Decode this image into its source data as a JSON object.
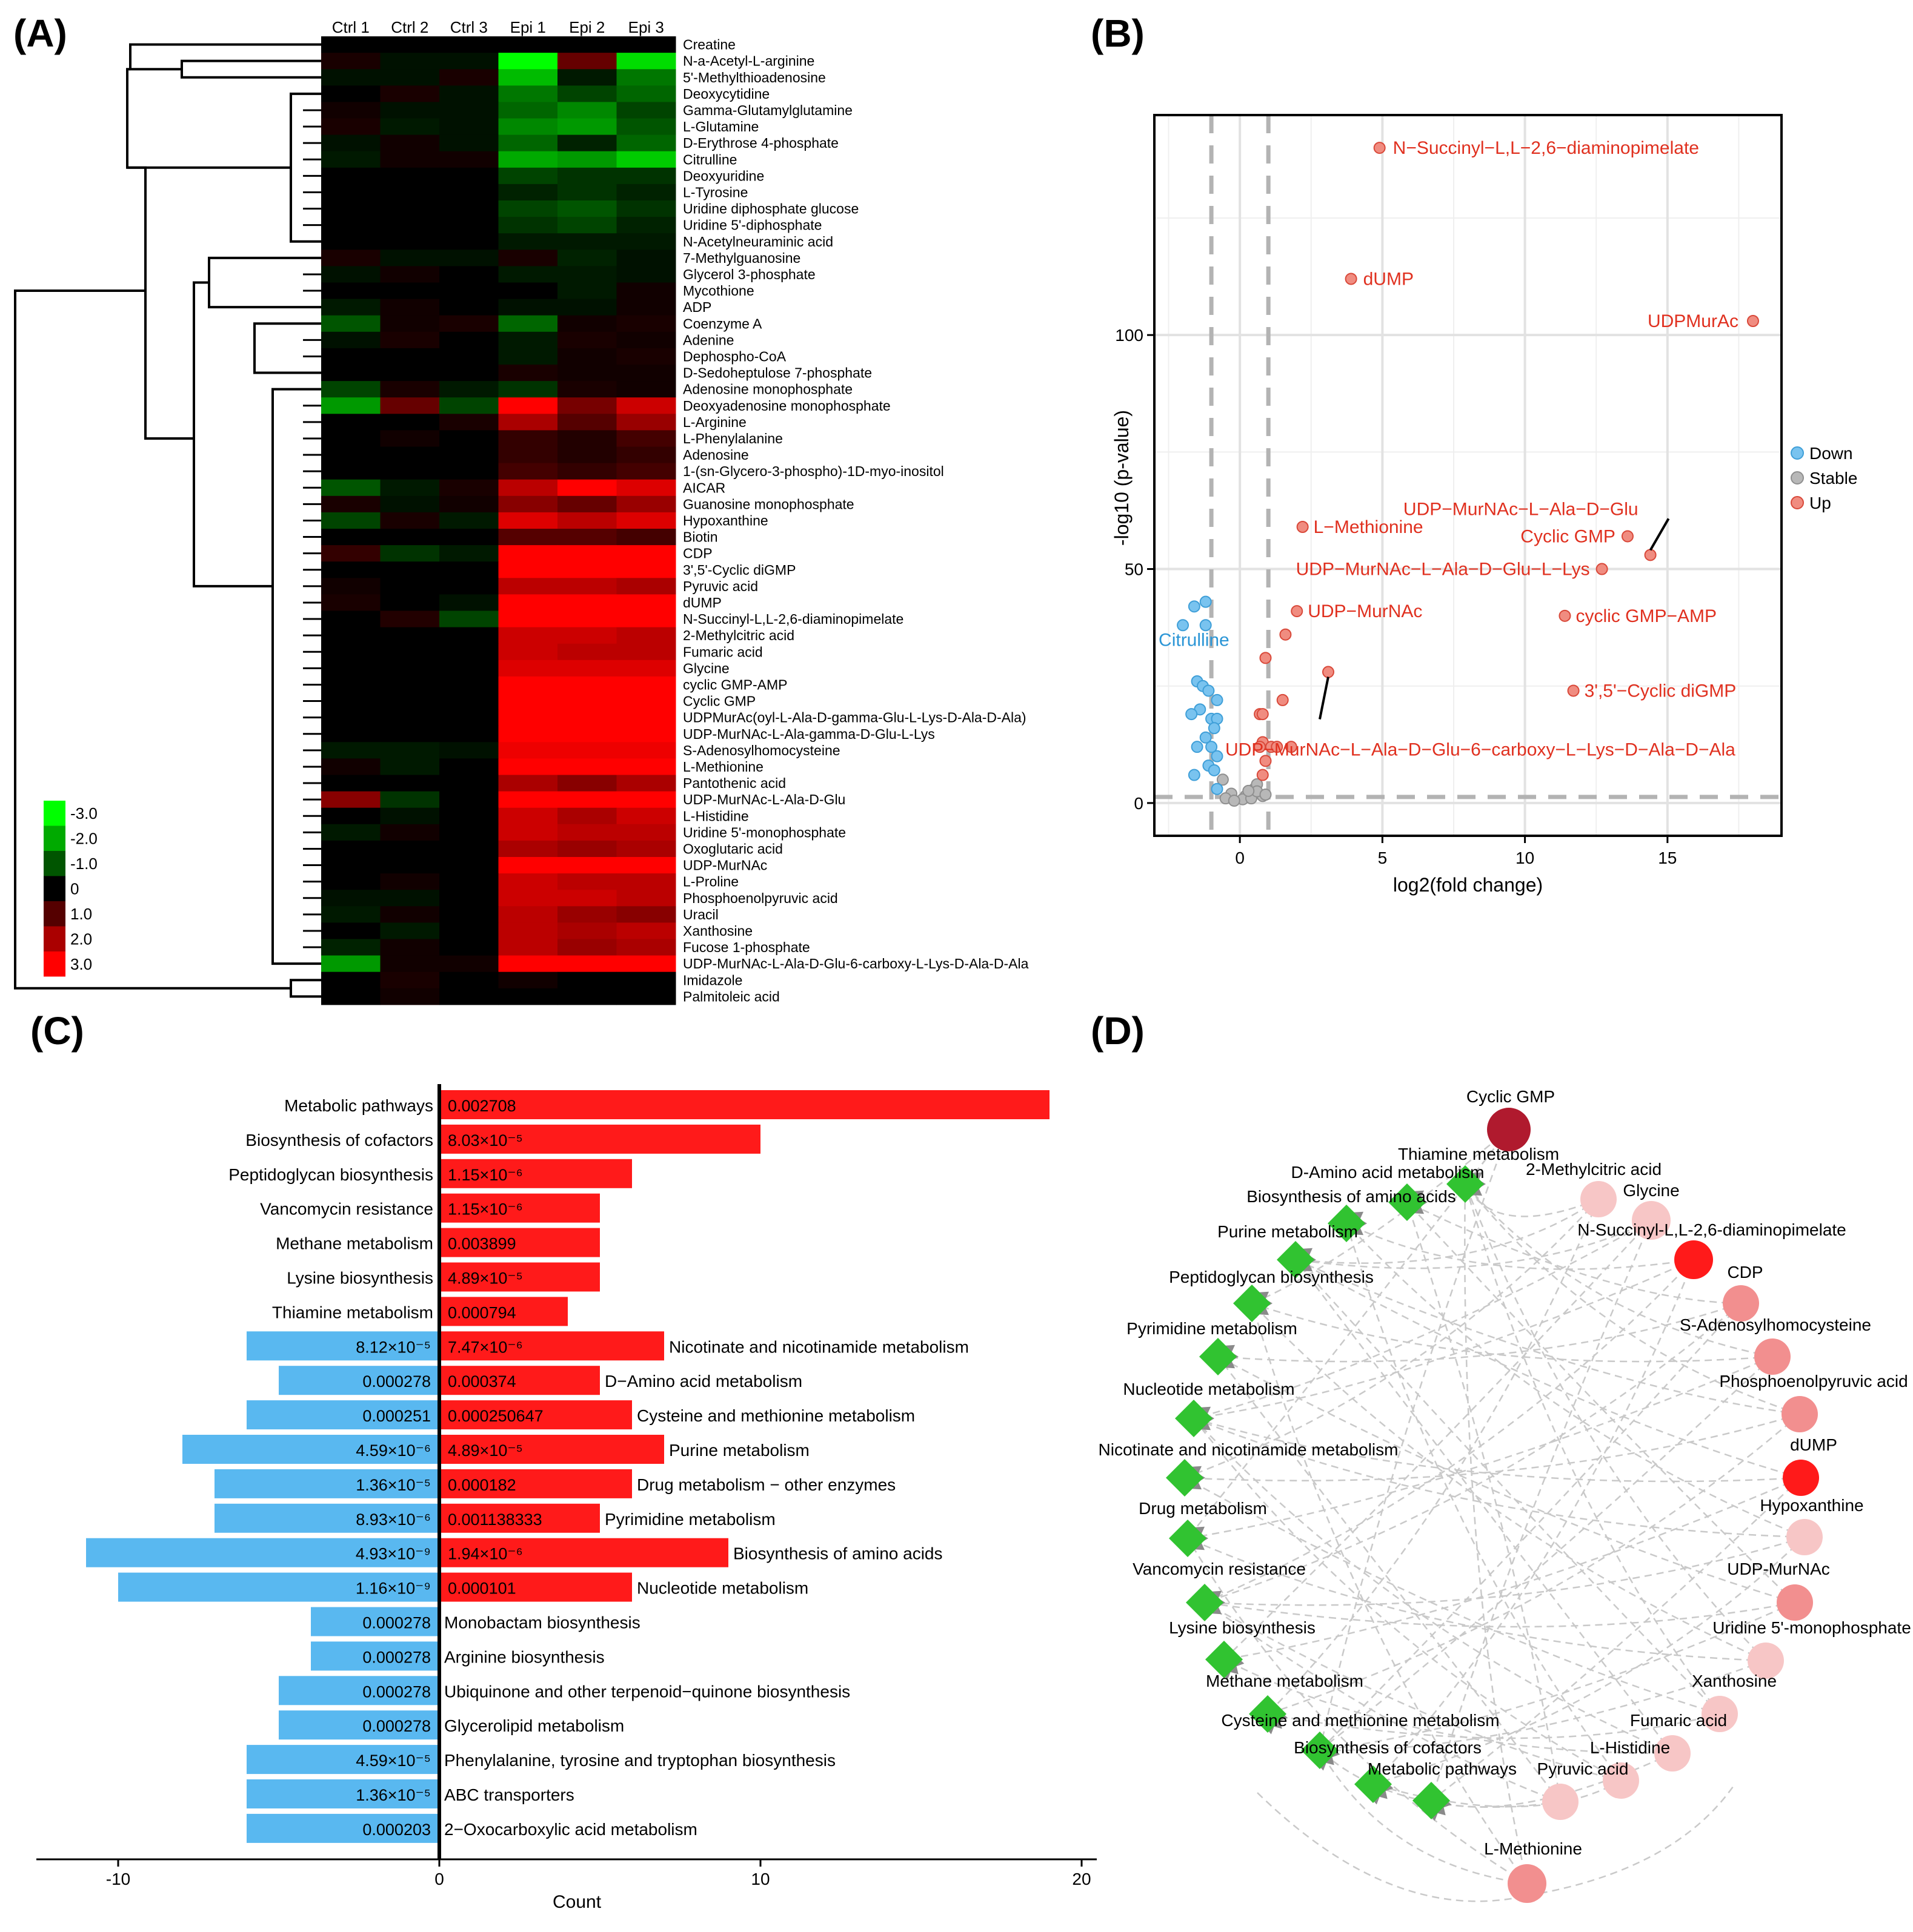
{
  "panels": {
    "a": "(A)",
    "b": "(B)",
    "c": "(C)",
    "d": "(D)"
  },
  "colors": {
    "up": "#ff1a1a",
    "down": "#59b8f0",
    "stable": "#b3b3b3",
    "node": "#31c331",
    "dark_red": "#b01a2e",
    "pink": "#f7b2b2"
  },
  "heatmap": {
    "columns": [
      "Ctrl 1",
      "Ctrl 2",
      "Ctrl 3",
      "Epi 1",
      "Epi 2",
      "Epi 3"
    ],
    "rows": [
      "Creatine",
      "N-a-Acetyl-L-arginine",
      "5'-Methylthioadenosine",
      "Deoxycytidine",
      "Gamma-Glutamylglutamine",
      "L-Glutamine",
      "D-Erythrose 4-phosphate",
      "Citrulline",
      "Deoxyuridine",
      "L-Tyrosine",
      "Uridine diphosphate glucose",
      "Uridine 5'-diphosphate",
      "N-Acetylneuraminic acid",
      "7-Methylguanosine",
      "Glycerol 3-phosphate",
      "Mycothione",
      "ADP",
      "Coenzyme A",
      "Adenine",
      "Dephospho-CoA",
      "D-Sedoheptulose 7-phosphate",
      "Adenosine monophosphate",
      "Deoxyadenosine monophosphate",
      "L-Arginine",
      "L-Phenylalanine",
      "Adenosine",
      "1-(sn-Glycero-3-phospho)-1D-myo-inositol",
      "AICAR",
      "Guanosine monophosphate",
      "Hypoxanthine",
      "Biotin",
      "CDP",
      "3',5'-Cyclic diGMP",
      "Pyruvic acid",
      "dUMP",
      "N-Succinyl-L,L-2,6-diaminopimelate",
      "2-Methylcitric acid",
      "Fumaric acid",
      "Glycine",
      "cyclic GMP-AMP",
      "Cyclic GMP",
      "UDPMurAc(oyl-L-Ala-D-gamma-Glu-L-Lys-D-Ala-D-Ala)",
      "UDP-MurNAc-L-Ala-gamma-D-Glu-L-Lys",
      "S-Adenosylhomocysteine",
      "L-Methionine",
      "Pantothenic acid",
      "UDP-MurNAc-L-Ala-D-Glu",
      "L-Histidine",
      "Uridine 5'-monophosphate",
      "Oxoglutaric acid",
      "UDP-MurNAc",
      "L-Proline",
      "Phosphoenolpyruvic acid",
      "Uracil",
      "Xanthosine",
      "Fucose 1-phosphate",
      "UDP-MurNAc-L-Ala-D-Glu-6-carboxy-L-Lys-D-Ala-D-Ala",
      "Imidazole",
      "Palmitoleic acid"
    ],
    "legend": [
      "-3.0",
      "-2.0",
      "-1.0",
      "0",
      "1.0",
      "2.0",
      "3.0"
    ],
    "values": [
      [
        0,
        0,
        0,
        0,
        0,
        0
      ],
      [
        0.3,
        -0.2,
        -0.2,
        -3,
        1.2,
        -2.6
      ],
      [
        -0.2,
        -0.2,
        0.3,
        -2.2,
        -0.3,
        -1.4
      ],
      [
        0,
        0.3,
        -0.2,
        -1.4,
        -0.8,
        -1.2
      ],
      [
        0.2,
        -0.2,
        -0.2,
        -1.2,
        -1.6,
        -0.8
      ],
      [
        0.3,
        -0.3,
        -0.2,
        -1.6,
        -1.8,
        -1.0
      ],
      [
        -0.2,
        0.2,
        -0.2,
        -1.2,
        -0.4,
        -1.2
      ],
      [
        -0.3,
        0.2,
        0.2,
        -2.0,
        -1.8,
        -2.4
      ],
      [
        0,
        0,
        0,
        -0.8,
        -0.6,
        -0.6
      ],
      [
        0,
        0,
        0,
        -0.4,
        -0.6,
        -0.4
      ],
      [
        0,
        0,
        0,
        -0.8,
        -1.0,
        -0.6
      ],
      [
        0,
        0,
        0,
        -0.6,
        -0.8,
        -0.4
      ],
      [
        0,
        0,
        0,
        -0.3,
        -0.3,
        -0.3
      ],
      [
        0.3,
        -0.2,
        -0.2,
        0.3,
        -0.4,
        -0.2
      ],
      [
        -0.2,
        0.2,
        0,
        -0.3,
        -0.3,
        -0.2
      ],
      [
        0,
        0,
        0,
        0,
        -0.3,
        0.2
      ],
      [
        -0.3,
        0.2,
        0,
        -0.2,
        -0.2,
        0.2
      ],
      [
        -1.0,
        0.2,
        0.3,
        -1.2,
        0.2,
        0.3
      ],
      [
        -0.2,
        0.3,
        0,
        -0.3,
        0.3,
        0.2
      ],
      [
        0,
        0,
        0,
        -0.3,
        0.2,
        0.3
      ],
      [
        0,
        0,
        0,
        0.3,
        0.2,
        0.2
      ],
      [
        -0.8,
        0.3,
        -0.3,
        -0.6,
        0.3,
        0.2
      ],
      [
        -1.8,
        1.2,
        -0.8,
        3,
        1.4,
        2.4
      ],
      [
        0,
        0,
        0.3,
        2.0,
        1.0,
        1.8
      ],
      [
        0,
        0.2,
        0,
        0.6,
        0.4,
        0.8
      ],
      [
        0,
        0,
        0,
        0.6,
        0.4,
        0.6
      ],
      [
        0,
        0,
        0,
        0.8,
        0.6,
        0.8
      ],
      [
        -1.0,
        -0.3,
        0.3,
        2.2,
        3,
        2.6
      ],
      [
        0.3,
        -0.2,
        0.2,
        1.6,
        1.2,
        1.8
      ],
      [
        -0.8,
        0.3,
        -0.3,
        2.6,
        2.2,
        2.6
      ],
      [
        0,
        0,
        0,
        1.0,
        1.0,
        0.8
      ],
      [
        0.6,
        -0.6,
        -0.3,
        3,
        3,
        3
      ],
      [
        0,
        0,
        0,
        3,
        3,
        3
      ],
      [
        0.2,
        0,
        0,
        2.2,
        2.2,
        2.0
      ],
      [
        0.3,
        0,
        -0.2,
        3,
        3,
        3
      ],
      [
        0,
        0.4,
        -0.8,
        3,
        3,
        3
      ],
      [
        0,
        0,
        0,
        2.4,
        2.4,
        2.2
      ],
      [
        0,
        0,
        0,
        2.4,
        2.2,
        2.2
      ],
      [
        0,
        0,
        0,
        2.6,
        2.6,
        2.6
      ],
      [
        0,
        0,
        0,
        3,
        3,
        3
      ],
      [
        0,
        0,
        0,
        3,
        3,
        3
      ],
      [
        0,
        0,
        0,
        3,
        3,
        3
      ],
      [
        0,
        0,
        0,
        3,
        3,
        3
      ],
      [
        -0.3,
        -0.3,
        -0.2,
        2.8,
        2.8,
        2.8
      ],
      [
        0.2,
        -0.3,
        0,
        3,
        3,
        3
      ],
      [
        0,
        0,
        0,
        2.0,
        1.6,
        2.0
      ],
      [
        1.6,
        -0.6,
        0,
        3,
        3,
        3
      ],
      [
        0,
        -0.2,
        0,
        2.4,
        2.0,
        2.4
      ],
      [
        -0.3,
        0.2,
        0,
        2.4,
        2.2,
        2.2
      ],
      [
        0,
        0,
        0,
        2.0,
        1.8,
        2.0
      ],
      [
        0,
        0,
        0,
        3,
        3,
        3
      ],
      [
        0,
        0.2,
        0,
        2.4,
        2.2,
        2.2
      ],
      [
        -0.2,
        -0.2,
        0,
        2.4,
        2.4,
        2.2
      ],
      [
        -0.3,
        0.2,
        0,
        2.2,
        1.8,
        1.6
      ],
      [
        0,
        -0.3,
        0,
        2.2,
        2.0,
        2.2
      ],
      [
        -0.4,
        0.2,
        0,
        2.2,
        1.8,
        2.0
      ],
      [
        -1.8,
        0.2,
        0.2,
        3,
        3,
        3
      ],
      [
        0,
        0.3,
        0,
        0.2,
        0,
        0
      ],
      [
        0,
        0.2,
        0,
        0,
        0,
        0
      ]
    ]
  },
  "volcano": {
    "chart_data": {
      "type": "scatter",
      "xlabel": "log2(fold change)",
      "ylabel": "-log10 (p-value)",
      "xlim": [
        -3,
        19
      ],
      "ylim": [
        -7,
        147
      ],
      "xticks": [
        0,
        5,
        10,
        15
      ],
      "yticks": [
        0,
        50,
        100
      ],
      "thresholds": {
        "x": [
          -1,
          1
        ],
        "y": 1.3
      },
      "legend": [
        "Down",
        "Stable",
        "Up"
      ],
      "labels": [
        {
          "text": "N−Succinyl−L,L−2,6−diaminopimelate",
          "x": 4.9,
          "y": 140,
          "group": "up"
        },
        {
          "text": "dUMP",
          "x": 3.9,
          "y": 112,
          "group": "up"
        },
        {
          "text": "UDPMurAc",
          "x": 18.0,
          "y": 103,
          "group": "up"
        },
        {
          "text": "UDP−MurNAc−L−Ala−D−Glu",
          "x": 14.4,
          "y": 53,
          "group": "up"
        },
        {
          "text": "Cyclic GMP",
          "x": 13.6,
          "y": 57,
          "group": "up"
        },
        {
          "text": "L−Methionine",
          "x": 2.2,
          "y": 59,
          "group": "up"
        },
        {
          "text": "UDP−MurNAc−L−Ala−D−Glu−L−Lys",
          "x": 12.7,
          "y": 50,
          "group": "up"
        },
        {
          "text": "UDP−MurNAc",
          "x": 2.0,
          "y": 41,
          "group": "up"
        },
        {
          "text": "cyclic GMP−AMP",
          "x": 11.4,
          "y": 40,
          "group": "up"
        },
        {
          "text": "3',5'−Cyclic diGMP",
          "x": 11.7,
          "y": 24,
          "group": "up"
        },
        {
          "text": "UDP−MurNAc−L−Ala−D−Glu−6−carboxy−L−Lys−D−Ala−D−Ala",
          "x": 3.1,
          "y": 28,
          "group": "up"
        },
        {
          "text": "Citrulline",
          "x": -2.0,
          "y": 38,
          "group": "down"
        }
      ],
      "points": {
        "up": [
          [
            4.9,
            140
          ],
          [
            3.9,
            112
          ],
          [
            18.0,
            103
          ],
          [
            14.4,
            53
          ],
          [
            13.6,
            57
          ],
          [
            2.2,
            59
          ],
          [
            12.7,
            50
          ],
          [
            2.0,
            41
          ],
          [
            11.4,
            40
          ],
          [
            11.7,
            24
          ],
          [
            3.1,
            28
          ],
          [
            1.6,
            36
          ],
          [
            0.9,
            31
          ],
          [
            1.5,
            22
          ],
          [
            0.7,
            19
          ],
          [
            0.8,
            19
          ],
          [
            0.8,
            13
          ],
          [
            0.7,
            12
          ],
          [
            1.1,
            12
          ],
          [
            1.3,
            12
          ],
          [
            1.8,
            12
          ],
          [
            0.9,
            9
          ],
          [
            0.8,
            6
          ]
        ],
        "down": [
          [
            -2.0,
            38
          ],
          [
            -1.6,
            42
          ],
          [
            -1.2,
            43
          ],
          [
            -1.2,
            38
          ],
          [
            -1.5,
            26
          ],
          [
            -1.3,
            25
          ],
          [
            -1.1,
            24
          ],
          [
            -0.8,
            22
          ],
          [
            -1.4,
            20
          ],
          [
            -1.7,
            19
          ],
          [
            -1.0,
            18
          ],
          [
            -0.8,
            18
          ],
          [
            -0.9,
            16
          ],
          [
            -1.2,
            14
          ],
          [
            -1.0,
            12
          ],
          [
            -1.5,
            12
          ],
          [
            -0.8,
            10
          ],
          [
            -1.1,
            8
          ],
          [
            -0.9,
            7
          ],
          [
            -1.6,
            6
          ],
          [
            -0.8,
            3
          ]
        ],
        "stable": [
          [
            -0.6,
            5
          ],
          [
            -0.3,
            2
          ],
          [
            0.2,
            1.5
          ],
          [
            0.5,
            3
          ],
          [
            0.6,
            4
          ],
          [
            -0.5,
            1
          ],
          [
            0.1,
            0.8
          ],
          [
            0.4,
            1
          ],
          [
            0.8,
            1.5
          ],
          [
            -0.2,
            0.5
          ],
          [
            0.6,
            2.5
          ],
          [
            0.9,
            1.8
          ],
          [
            0.3,
            2.6
          ]
        ]
      }
    }
  },
  "barchart": {
    "chart_data": {
      "type": "bar",
      "orientation": "horizontal",
      "xlabel": "Count",
      "xlim": [
        -12.5,
        20.5
      ],
      "xticks": [
        -10,
        0,
        10,
        20
      ],
      "series": [
        {
          "name": "",
          "color": "#59b8f0"
        },
        {
          "name": "",
          "color": "#ff1a1a"
        }
      ],
      "rows": [
        {
          "category": "Metabolic pathways",
          "down": null,
          "down_label": "",
          "up": 19,
          "up_label": "0.002708",
          "label_side": "left"
        },
        {
          "category": "Biosynthesis of cofactors",
          "down": null,
          "down_label": "",
          "up": 10,
          "up_label": "8.03×10⁻⁵",
          "label_side": "left"
        },
        {
          "category": "Peptidoglycan biosynthesis",
          "down": null,
          "down_label": "",
          "up": 6,
          "up_label": "1.15×10⁻⁶",
          "label_side": "left"
        },
        {
          "category": "Vancomycin resistance",
          "down": null,
          "down_label": "",
          "up": 5,
          "up_label": "1.15×10⁻⁶",
          "label_side": "left"
        },
        {
          "category": "Methane metabolism",
          "down": null,
          "down_label": "",
          "up": 5,
          "up_label": "0.003899",
          "label_side": "left"
        },
        {
          "category": "Lysine biosynthesis",
          "down": null,
          "down_label": "",
          "up": 5,
          "up_label": "4.89×10⁻⁵",
          "label_side": "left"
        },
        {
          "category": "Thiamine metabolism",
          "down": null,
          "down_label": "",
          "up": 4,
          "up_label": "0.000794",
          "label_side": "left"
        },
        {
          "category": "Nicotinate and nicotinamide metabolism",
          "down": -6,
          "down_label": "8.12×10⁻⁵",
          "up": 7,
          "up_label": "7.47×10⁻⁶",
          "label_side": "right"
        },
        {
          "category": "D−Amino acid metabolism",
          "down": -5,
          "down_label": "0.000278",
          "up": 5,
          "up_label": "0.000374",
          "label_side": "right"
        },
        {
          "category": "Cysteine and methionine metabolism",
          "down": -6,
          "down_label": "0.000251",
          "up": 6,
          "up_label": "0.000250647",
          "label_side": "right"
        },
        {
          "category": "Purine metabolism",
          "down": -8,
          "down_label": "4.59×10⁻⁶",
          "up": 7,
          "up_label": "4.89×10⁻⁵",
          "label_side": "right"
        },
        {
          "category": "Drug metabolism − other enzymes",
          "down": -7,
          "down_label": "1.36×10⁻⁵",
          "up": 6,
          "up_label": "0.000182",
          "label_side": "right"
        },
        {
          "category": "Pyrimidine metabolism",
          "down": -7,
          "down_label": "8.93×10⁻⁶",
          "up": 5,
          "up_label": "0.001138333",
          "label_side": "right"
        },
        {
          "category": "Biosynthesis of amino acids",
          "down": -11,
          "down_label": "4.93×10⁻⁹",
          "up": 9,
          "up_label": "1.94×10⁻⁶",
          "label_side": "right"
        },
        {
          "category": "Nucleotide metabolism",
          "down": -10,
          "down_label": "1.16×10⁻⁹",
          "up": 6,
          "up_label": "0.000101",
          "label_side": "right"
        },
        {
          "category": "Monobactam biosynthesis",
          "down": -4,
          "down_label": "0.000278",
          "up": null,
          "up_label": "",
          "label_side": "right"
        },
        {
          "category": "Arginine biosynthesis",
          "down": -4,
          "down_label": "0.000278",
          "up": null,
          "up_label": "",
          "label_side": "right"
        },
        {
          "category": "Ubiquinone and other terpenoid−quinone biosynthesis",
          "down": -5,
          "down_label": "0.000278",
          "up": null,
          "up_label": "",
          "label_side": "right"
        },
        {
          "category": "Glycerolipid metabolism",
          "down": -5,
          "down_label": "0.000278",
          "up": null,
          "up_label": "",
          "label_side": "right"
        },
        {
          "category": "Phenylalanine, tyrosine and tryptophan biosynthesis",
          "down": -6,
          "down_label": "4.59×10⁻⁵",
          "up": null,
          "up_label": "",
          "label_side": "right"
        },
        {
          "category": "ABC transporters",
          "down": -6,
          "down_label": "1.36×10⁻⁵",
          "up": null,
          "up_label": "",
          "label_side": "right"
        },
        {
          "category": "2−Oxocarboxylic acid metabolism",
          "down": -6,
          "down_label": "0.000203",
          "up": null,
          "up_label": "",
          "label_side": "right"
        }
      ]
    }
  },
  "network": {
    "pathways": [
      "Thiamine metabolism",
      "D-Amino acid metabolism",
      "Biosynthesis of amino acids",
      "Purine metabolism",
      "Peptidoglycan biosynthesis",
      "Pyrimidine metabolism",
      "Nucleotide metabolism",
      "Nicotinate and nicotinamide metabolism",
      "Drug metabolism",
      "Vancomycin resistance",
      "Lysine biosynthesis",
      "Methane metabolism",
      "Cysteine and methionine metabolism",
      "Biosynthesis of cofactors",
      "Metabolic pathways"
    ],
    "metabolites": [
      {
        "name": "Cyclic GMP",
        "shade": "dark"
      },
      {
        "name": "2-Methylcitric acid",
        "shade": "light"
      },
      {
        "name": "Glycine",
        "shade": "light"
      },
      {
        "name": "N-Succinyl-L,L-2,6-diaminopimelate",
        "shade": "red"
      },
      {
        "name": "CDP",
        "shade": "pink"
      },
      {
        "name": "S-Adenosylhomocysteine",
        "shade": "pink"
      },
      {
        "name": "Phosphoenolpyruvic acid",
        "shade": "pink"
      },
      {
        "name": "dUMP",
        "shade": "red"
      },
      {
        "name": "Hypoxanthine",
        "shade": "light"
      },
      {
        "name": "UDP-MurNAc",
        "shade": "pink"
      },
      {
        "name": "Uridine 5'-monophosphate",
        "shade": "light"
      },
      {
        "name": "Xanthosine",
        "shade": "light"
      },
      {
        "name": "Fumaric acid",
        "shade": "light"
      },
      {
        "name": "L-Histidine",
        "shade": "light"
      },
      {
        "name": "Pyruvic acid",
        "shade": "light"
      },
      {
        "name": "L-Methionine",
        "shade": "pink"
      }
    ]
  }
}
